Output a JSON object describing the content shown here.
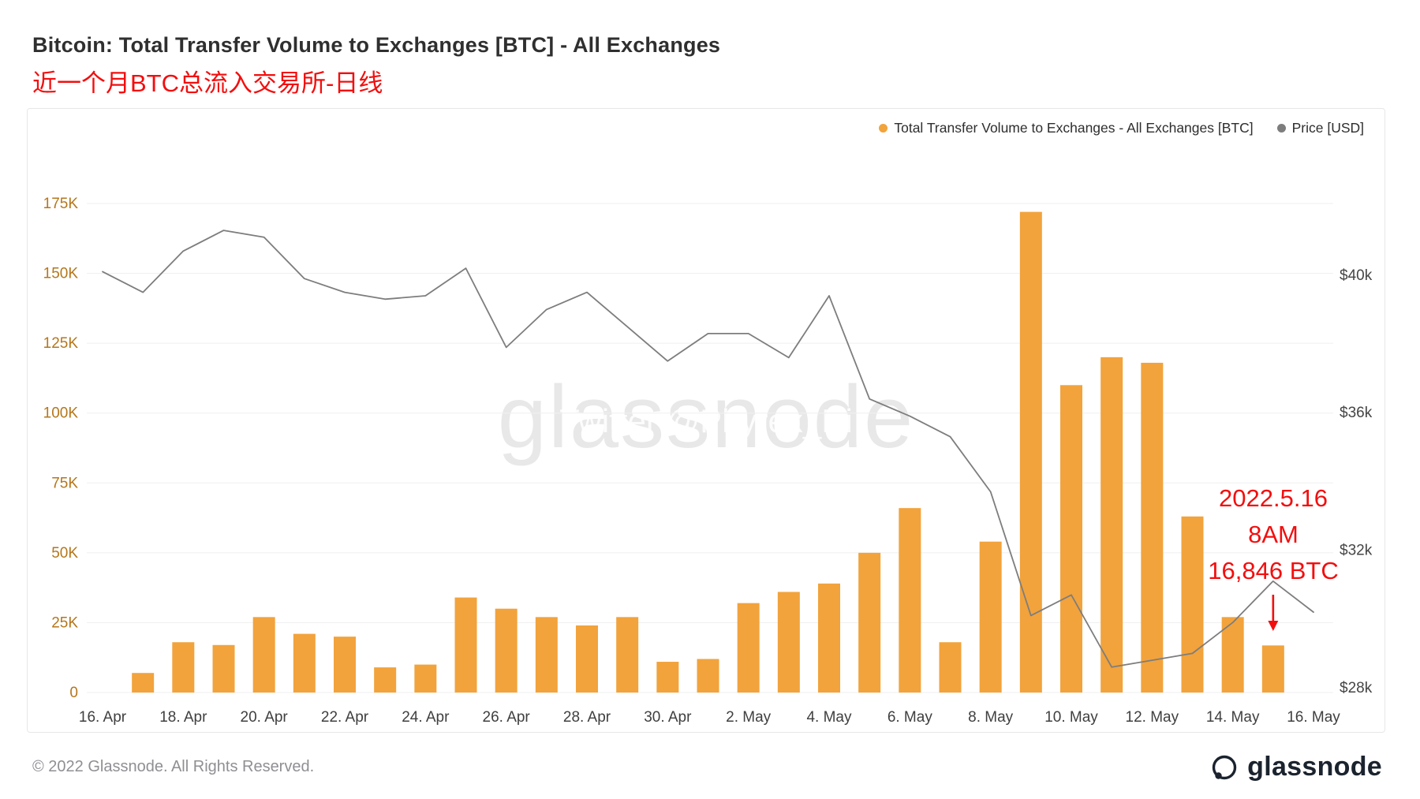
{
  "header": {
    "title": "Bitcoin: Total Transfer Volume to Exchanges [BTC] - All Exchanges",
    "subtitle": "近一个月BTC总流入交易所-日线",
    "subtitle_color": "#f30e0e"
  },
  "legend": [
    {
      "label": "Total Transfer Volume to Exchanges - All Exchanges [BTC]",
      "color": "#f2a33c"
    },
    {
      "label": "Price [USD]",
      "color": "#7d7d7d"
    }
  ],
  "watermark": {
    "main": "glassnode",
    "overlay": "Twitter @Phyrex_Ni"
  },
  "annotation": {
    "line1": "2022.5.16",
    "line2": "8AM",
    "line3": "16,846 BTC",
    "color": "#f30e0e",
    "arrow_day_index": 29
  },
  "footer": {
    "copyright": "© 2022 Glassnode. All Rights Reserved.",
    "brand": "glassnode"
  },
  "chart_data": {
    "type": "bar+line",
    "title": "Bitcoin: Total Transfer Volume to Exchanges [BTC] - All Exchanges",
    "legend_position": "top-right",
    "grid": true,
    "x_tick_labels": [
      "16. Apr",
      "18. Apr",
      "20. Apr",
      "22. Apr",
      "24. Apr",
      "26. Apr",
      "28. Apr",
      "30. Apr",
      "2. May",
      "4. May",
      "6. May",
      "8. May",
      "10. May",
      "12. May",
      "14. May",
      "16. May"
    ],
    "left_axis": {
      "ticks": [
        "0",
        "25K",
        "50K",
        "75K",
        "100K",
        "125K",
        "150K",
        "175K"
      ],
      "values": [
        0,
        25,
        50,
        75,
        100,
        125,
        150,
        175
      ],
      "max": 175,
      "color": "#b5761a"
    },
    "right_axis": {
      "ticks": [
        "$28k",
        "$32k",
        "$36k",
        "$40k"
      ],
      "values": [
        28,
        32,
        36,
        40
      ],
      "color": "#454545"
    },
    "bars": {
      "name": "Total Transfer Volume to Exchanges - All Exchanges [BTC]",
      "color": "#f2a33c",
      "unit": "BTC (thousands)",
      "dates": [
        "17. Apr",
        "18. Apr",
        "19. Apr",
        "20. Apr",
        "21. Apr",
        "22. Apr",
        "23. Apr",
        "24. Apr",
        "25. Apr",
        "26. Apr",
        "27. Apr",
        "28. Apr",
        "29. Apr",
        "30. Apr",
        "1. May",
        "2. May",
        "3. May",
        "4. May",
        "5. May",
        "6. May",
        "7. May",
        "8. May",
        "9. May",
        "10. May",
        "11. May",
        "12. May",
        "13. May",
        "14. May",
        "15. May"
      ],
      "values_k": [
        7,
        18,
        17,
        27,
        21,
        20,
        9,
        10,
        34,
        30,
        27,
        24,
        27,
        11,
        12,
        32,
        36,
        39,
        50,
        66,
        18,
        54,
        172,
        110,
        120,
        118,
        63,
        27,
        16.846
      ]
    },
    "price": {
      "name": "Price [USD]",
      "color": "#7d7d7d",
      "unit": "USD (thousands)",
      "dates": [
        "16. Apr",
        "17. Apr",
        "18. Apr",
        "19. Apr",
        "20. Apr",
        "21. Apr",
        "22. Apr",
        "23. Apr",
        "24. Apr",
        "25. Apr",
        "26. Apr",
        "27. Apr",
        "28. Apr",
        "29. Apr",
        "30. Apr",
        "1. May",
        "2. May",
        "3. May",
        "4. May",
        "5. May",
        "6. May",
        "7. May",
        "8. May",
        "9. May",
        "10. May",
        "11. May",
        "12. May",
        "13. May",
        "14. May",
        "15. May",
        "16. May"
      ],
      "values_usd_k": [
        40.1,
        39.5,
        40.7,
        41.3,
        41.1,
        39.9,
        39.5,
        39.3,
        39.4,
        40.2,
        37.9,
        39.0,
        39.5,
        38.5,
        37.5,
        38.3,
        38.3,
        37.6,
        39.4,
        36.4,
        35.9,
        35.3,
        33.7,
        30.1,
        30.7,
        28.6,
        28.8,
        29.0,
        29.9,
        31.1,
        30.2
      ]
    }
  }
}
